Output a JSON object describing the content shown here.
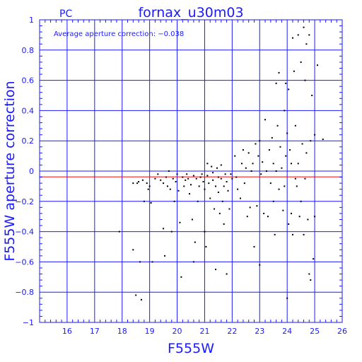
{
  "chart_data": {
    "type": "scatter",
    "camera_label": "PC",
    "title": "fornax_u30m03",
    "annotation": "Average aperture correction: −0.038",
    "xlabel": "F555W",
    "ylabel": "F555W aperture correction",
    "xlim": [
      15,
      26
    ],
    "ylim": [
      -1,
      1
    ],
    "xticks": [
      16,
      17,
      18,
      19,
      20,
      21,
      22,
      23,
      24,
      25,
      26
    ],
    "yticks": [
      -1,
      -0.8,
      -0.6,
      -0.4,
      -0.2,
      0,
      0.2,
      0.4,
      0.6,
      0.8,
      1
    ],
    "yticklabels": [
      "−1",
      "−0.8",
      "−0.6",
      "−0.4",
      "−0.2",
      "0",
      "0.2",
      "0.4",
      "0.6",
      "0.8",
      "1"
    ],
    "grid": true,
    "reference_line": {
      "y": -0.038,
      "color": "#ff0000"
    },
    "colors": {
      "axis": "#1a1aff",
      "grid": "#1a1aff",
      "points": "#000000"
    },
    "points": [
      [
        17.9,
        -0.4
      ],
      [
        18.4,
        -0.08
      ],
      [
        18.4,
        -0.52
      ],
      [
        18.5,
        -0.82
      ],
      [
        18.55,
        -0.08
      ],
      [
        18.6,
        -0.07
      ],
      [
        18.65,
        -0.6
      ],
      [
        18.7,
        -0.85
      ],
      [
        18.75,
        -0.06
      ],
      [
        18.8,
        -0.2
      ],
      [
        18.9,
        -0.08
      ],
      [
        18.95,
        -0.12
      ],
      [
        19.0,
        -0.1
      ],
      [
        19.05,
        -0.21
      ],
      [
        19.1,
        -0.6
      ],
      [
        19.2,
        -0.05
      ],
      [
        19.3,
        -0.02
      ],
      [
        19.4,
        -0.06
      ],
      [
        19.5,
        -0.08
      ],
      [
        19.5,
        -0.38
      ],
      [
        19.55,
        -0.56
      ],
      [
        19.6,
        -0.04
      ],
      [
        19.65,
        -0.1
      ],
      [
        19.7,
        0.0
      ],
      [
        19.75,
        -0.12
      ],
      [
        19.8,
        -0.4
      ],
      [
        19.85,
        -0.05
      ],
      [
        19.9,
        -0.2
      ],
      [
        19.95,
        -0.07
      ],
      [
        20.0,
        -0.02
      ],
      [
        20.05,
        -0.13
      ],
      [
        20.1,
        -0.34
      ],
      [
        20.15,
        -0.7
      ],
      [
        20.2,
        -0.04
      ],
      [
        20.25,
        -0.1
      ],
      [
        20.3,
        -0.06
      ],
      [
        20.35,
        -0.02
      ],
      [
        20.4,
        -0.05
      ],
      [
        20.45,
        -0.15
      ],
      [
        20.5,
        -0.09
      ],
      [
        20.55,
        -0.32
      ],
      [
        20.6,
        -0.6
      ],
      [
        20.6,
        -0.03
      ],
      [
        20.65,
        -0.47
      ],
      [
        20.7,
        -0.05
      ],
      [
        20.75,
        -0.2
      ],
      [
        20.8,
        -0.1
      ],
      [
        20.85,
        -0.04
      ],
      [
        20.9,
        -0.02
      ],
      [
        20.95,
        -0.07
      ],
      [
        21.0,
        -0.12
      ],
      [
        21.0,
        -0.4
      ],
      [
        21.05,
        -0.5
      ],
      [
        21.1,
        -0.03
      ],
      [
        21.1,
        0.05
      ],
      [
        21.15,
        -0.08
      ],
      [
        21.2,
        -0.18
      ],
      [
        21.25,
        0.03
      ],
      [
        21.3,
        -0.01
      ],
      [
        21.3,
        -0.06
      ],
      [
        21.35,
        -0.25
      ],
      [
        21.4,
        -0.1
      ],
      [
        21.4,
        -0.65
      ],
      [
        21.45,
        0.02
      ],
      [
        21.5,
        -0.04
      ],
      [
        21.5,
        -0.14
      ],
      [
        21.55,
        -0.28
      ],
      [
        21.6,
        -0.05
      ],
      [
        21.6,
        0.04
      ],
      [
        21.65,
        -0.2
      ],
      [
        21.7,
        -0.1
      ],
      [
        21.7,
        -0.35
      ],
      [
        21.75,
        -0.02
      ],
      [
        21.8,
        -0.07
      ],
      [
        21.8,
        -0.68
      ],
      [
        21.85,
        -0.13
      ],
      [
        21.9,
        -0.25
      ],
      [
        21.95,
        -0.02
      ],
      [
        22.0,
        -0.05
      ],
      [
        22.1,
        0.1
      ],
      [
        22.15,
        -0.04
      ],
      [
        22.2,
        -0.12
      ],
      [
        22.3,
        -0.18
      ],
      [
        22.35,
        0.05
      ],
      [
        22.4,
        0.14
      ],
      [
        22.45,
        -0.08
      ],
      [
        22.5,
        0.02
      ],
      [
        22.55,
        -0.3
      ],
      [
        22.6,
        0.12
      ],
      [
        22.65,
        -0.24
      ],
      [
        22.7,
        0.0
      ],
      [
        22.75,
        0.05
      ],
      [
        22.8,
        -0.5
      ],
      [
        22.85,
        0.18
      ],
      [
        22.9,
        -0.23
      ],
      [
        22.95,
        0.1
      ],
      [
        23.0,
        0.2
      ],
      [
        23.0,
        -0.62
      ],
      [
        23.05,
        -0.02
      ],
      [
        23.1,
        0.06
      ],
      [
        23.15,
        -0.28
      ],
      [
        23.2,
        0.34
      ],
      [
        23.25,
        0.0
      ],
      [
        23.3,
        -0.3
      ],
      [
        23.35,
        0.14
      ],
      [
        23.4,
        -0.08
      ],
      [
        23.45,
        0.22
      ],
      [
        23.5,
        0.05
      ],
      [
        23.5,
        -0.2
      ],
      [
        23.55,
        -0.42
      ],
      [
        23.6,
        0.58
      ],
      [
        23.6,
        0.0
      ],
      [
        23.65,
        0.3
      ],
      [
        23.7,
        0.65
      ],
      [
        23.7,
        -0.12
      ],
      [
        23.75,
        0.16
      ],
      [
        23.8,
        0.02
      ],
      [
        23.85,
        -0.26
      ],
      [
        23.9,
        0.4
      ],
      [
        23.9,
        -0.1
      ],
      [
        23.95,
        0.58
      ],
      [
        23.95,
        0.1
      ],
      [
        24.0,
        0.25
      ],
      [
        24.0,
        -0.84
      ],
      [
        24.05,
        0.54
      ],
      [
        24.05,
        -0.35
      ],
      [
        24.1,
        0.14
      ],
      [
        24.15,
        -0.28
      ],
      [
        24.15,
        0.05
      ],
      [
        24.2,
        0.88
      ],
      [
        24.2,
        -0.42
      ],
      [
        24.25,
        0.66
      ],
      [
        24.3,
        0.3
      ],
      [
        24.3,
        -0.05
      ],
      [
        24.35,
        -0.1
      ],
      [
        24.4,
        0.9
      ],
      [
        24.4,
        0.05
      ],
      [
        24.45,
        -0.3
      ],
      [
        24.5,
        0.72
      ],
      [
        24.5,
        -0.2
      ],
      [
        24.55,
        0.18
      ],
      [
        24.6,
        0.95
      ],
      [
        24.6,
        -0.42
      ],
      [
        24.65,
        0.6
      ],
      [
        24.65,
        -0.05
      ],
      [
        24.7,
        0.84
      ],
      [
        24.7,
        0.12
      ],
      [
        24.75,
        -0.32
      ],
      [
        24.8,
        0.9
      ],
      [
        24.8,
        -0.68
      ],
      [
        24.85,
        0.2
      ],
      [
        24.85,
        -0.72
      ],
      [
        24.9,
        0.5
      ],
      [
        24.95,
        -0.58
      ],
      [
        25.0,
        0.24
      ],
      [
        25.0,
        -0.3
      ],
      [
        25.1,
        0.7
      ],
      [
        25.3,
        0.21
      ]
    ]
  }
}
